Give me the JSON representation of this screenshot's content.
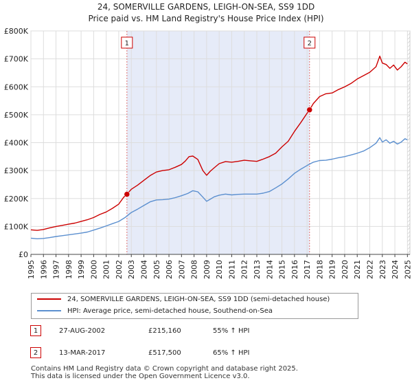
{
  "chart_data": {
    "type": "line",
    "title": "24, SOMERVILLE GARDENS, LEIGH-ON-SEA, SS9 1DD",
    "subtitle": "Price paid vs. HM Land Registry's House Price Index (HPI)",
    "xlabel": "",
    "ylabel": "",
    "xlim": [
      1995,
      2025.2
    ],
    "ylim": [
      0,
      800000
    ],
    "x_ticks": [
      "1995",
      "1996",
      "1997",
      "1998",
      "1999",
      "2000",
      "2001",
      "2002",
      "2003",
      "2004",
      "2005",
      "2006",
      "2007",
      "2008",
      "2009",
      "2010",
      "2011",
      "2012",
      "2013",
      "2014",
      "2015",
      "2016",
      "2017",
      "2018",
      "2019",
      "2020",
      "2021",
      "2022",
      "2023",
      "2024",
      "2025"
    ],
    "y_ticks": [
      {
        "value": 0,
        "label": "£0"
      },
      {
        "value": 100000,
        "label": "£100K"
      },
      {
        "value": 200000,
        "label": "£200K"
      },
      {
        "value": 300000,
        "label": "£300K"
      },
      {
        "value": 400000,
        "label": "£400K"
      },
      {
        "value": 500000,
        "label": "£500K"
      },
      {
        "value": 600000,
        "label": "£600K"
      },
      {
        "value": 700000,
        "label": "£700K"
      },
      {
        "value": 800000,
        "label": "£800K"
      }
    ],
    "grid": true,
    "ownership_period": [
      2002.65,
      2017.2
    ],
    "future_hatch_from": 2025.0,
    "series": [
      {
        "name": "24, SOMERVILLE GARDENS, LEIGH-ON-SEA, SS9 1DD (semi-detached house)",
        "color": "#cc0000",
        "x": [
          1995.0,
          1995.5,
          1996.0,
          1996.5,
          1997.0,
          1997.5,
          1998.0,
          1998.5,
          1999.0,
          1999.5,
          2000.0,
          2000.5,
          2001.0,
          2001.5,
          2002.0,
          2002.4,
          2002.65,
          2003.0,
          2003.5,
          2004.0,
          2004.5,
          2005.0,
          2005.5,
          2006.0,
          2006.5,
          2007.0,
          2007.3,
          2007.6,
          2007.9,
          2008.3,
          2008.7,
          2009.0,
          2009.3,
          2009.6,
          2010.0,
          2010.5,
          2011.0,
          2011.5,
          2012.0,
          2012.5,
          2013.0,
          2013.5,
          2014.0,
          2014.5,
          2015.0,
          2015.5,
          2016.0,
          2016.5,
          2017.0,
          2017.2,
          2017.5,
          2018.0,
          2018.5,
          2019.0,
          2019.5,
          2020.0,
          2020.5,
          2021.0,
          2021.5,
          2022.0,
          2022.5,
          2022.8,
          2023.0,
          2023.3,
          2023.6,
          2023.9,
          2024.2,
          2024.5,
          2024.8,
          2025.0
        ],
        "values": [
          88000,
          86000,
          89000,
          95000,
          100000,
          104000,
          108000,
          112000,
          118000,
          124000,
          132000,
          143000,
          152000,
          165000,
          180000,
          205000,
          215160,
          233000,
          248000,
          265000,
          282000,
          295000,
          300000,
          303000,
          312000,
          322000,
          334000,
          350000,
          352000,
          340000,
          300000,
          283000,
          298000,
          310000,
          325000,
          332000,
          330000,
          333000,
          337000,
          335000,
          333000,
          341000,
          350000,
          362000,
          385000,
          405000,
          440000,
          472000,
          505000,
          517500,
          540000,
          565000,
          575000,
          578000,
          590000,
          600000,
          612000,
          628000,
          640000,
          652000,
          672000,
          710000,
          685000,
          680000,
          666000,
          678000,
          660000,
          672000,
          688000,
          682000
        ]
      },
      {
        "name": "HPI: Average price, semi-detached house, Southend-on-Sea",
        "color": "#5b8fcf",
        "x": [
          1995.0,
          1995.5,
          1996.0,
          1996.5,
          1997.0,
          1997.5,
          1998.0,
          1998.5,
          1999.0,
          1999.5,
          2000.0,
          2000.5,
          2001.0,
          2001.5,
          2002.0,
          2002.5,
          2003.0,
          2003.5,
          2004.0,
          2004.5,
          2005.0,
          2005.5,
          2006.0,
          2006.5,
          2007.0,
          2007.5,
          2007.9,
          2008.3,
          2008.7,
          2009.0,
          2009.3,
          2009.6,
          2010.0,
          2010.5,
          2011.0,
          2011.5,
          2012.0,
          2012.5,
          2013.0,
          2013.5,
          2014.0,
          2014.5,
          2015.0,
          2015.5,
          2016.0,
          2016.5,
          2017.0,
          2017.5,
          2018.0,
          2018.5,
          2019.0,
          2019.5,
          2020.0,
          2020.5,
          2021.0,
          2021.5,
          2022.0,
          2022.5,
          2022.8,
          2023.0,
          2023.3,
          2023.6,
          2023.9,
          2024.2,
          2024.5,
          2024.8,
          2025.0
        ],
        "values": [
          58000,
          56000,
          57000,
          60000,
          64000,
          67000,
          70000,
          73000,
          76000,
          80000,
          87000,
          94000,
          102000,
          110000,
          118000,
          132000,
          150000,
          162000,
          175000,
          188000,
          195000,
          196000,
          198000,
          203000,
          210000,
          218000,
          228000,
          224000,
          205000,
          190000,
          198000,
          206000,
          212000,
          216000,
          213000,
          215000,
          216000,
          216000,
          216000,
          219000,
          225000,
          238000,
          252000,
          270000,
          290000,
          305000,
          318000,
          330000,
          336000,
          337000,
          341000,
          346000,
          350000,
          356000,
          362000,
          370000,
          382000,
          398000,
          418000,
          402000,
          410000,
          398000,
          405000,
          395000,
          402000,
          414000,
          410000
        ]
      }
    ],
    "markers": [
      {
        "label": "1",
        "x": 2002.65,
        "y": 215160
      },
      {
        "label": "2",
        "x": 2017.2,
        "y": 517500
      }
    ]
  },
  "legend": {
    "items": [
      {
        "label": "24, SOMERVILLE GARDENS, LEIGH-ON-SEA, SS9 1DD (semi-detached house)",
        "color": "#cc0000"
      },
      {
        "label": "HPI: Average price, semi-detached house, Southend-on-Sea",
        "color": "#5b8fcf"
      }
    ]
  },
  "sales": [
    {
      "num": "1",
      "date": "27-AUG-2002",
      "price": "£215,160",
      "hpi": "55% ↑ HPI"
    },
    {
      "num": "2",
      "date": "13-MAR-2017",
      "price": "£517,500",
      "hpi": "65% ↑ HPI"
    }
  ],
  "footer": {
    "line1": "Contains HM Land Registry data © Crown copyright and database right 2025.",
    "line2": "This data is licensed under the Open Government Licence v3.0."
  }
}
